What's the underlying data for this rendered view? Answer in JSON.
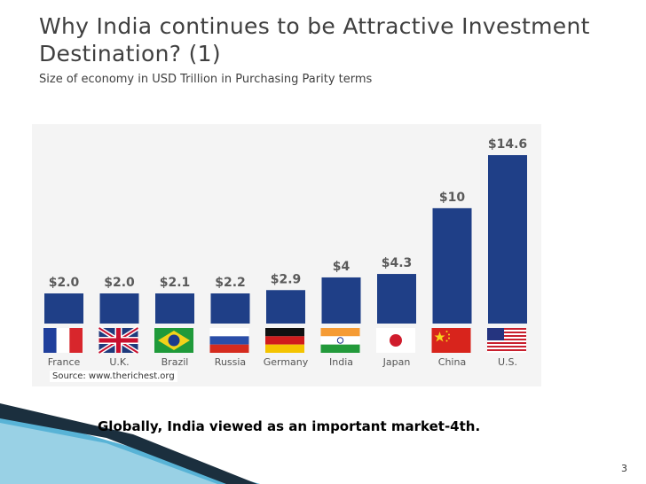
{
  "slide": {
    "title": "Why India continues to be Attractive Investment Destination? (1)",
    "subtitle": "Size of economy in USD Trillion in Purchasing Parity terms",
    "source": "Source: www.therichest.org",
    "tagline": "Globally, India viewed as an important market-4th.",
    "page_number": "3"
  },
  "colors": {
    "bar": "#1f3f87",
    "label": "#5a5a5a",
    "country": "#555555",
    "chart_bg": "#f4f4f4",
    "accent_dark": "#1b2f3e",
    "accent_light": "#58b3d6"
  },
  "chart_data": {
    "type": "bar",
    "title": "Size of economy in USD Trillion in Purchasing Parity terms",
    "xlabel": "",
    "ylabel": "",
    "ylim": [
      0,
      14.6
    ],
    "categories": [
      "France",
      "U.K.",
      "Brazil",
      "Russia",
      "Germany",
      "India",
      "Japan",
      "China",
      "U.S."
    ],
    "values": [
      2.0,
      2.0,
      2.1,
      2.2,
      2.9,
      4,
      4.3,
      10,
      14.6
    ],
    "data_labels": [
      "$2.0",
      "$2.0",
      "$2.1",
      "$2.2",
      "$2.9",
      "$4",
      "$4.3",
      "$10",
      "$14.6"
    ],
    "flag_icons": [
      "france-flag-icon",
      "uk-flag-icon",
      "brazil-flag-icon",
      "russia-flag-icon",
      "germany-flag-icon",
      "india-flag-icon",
      "japan-flag-icon",
      "china-flag-icon",
      "us-flag-icon"
    ]
  }
}
